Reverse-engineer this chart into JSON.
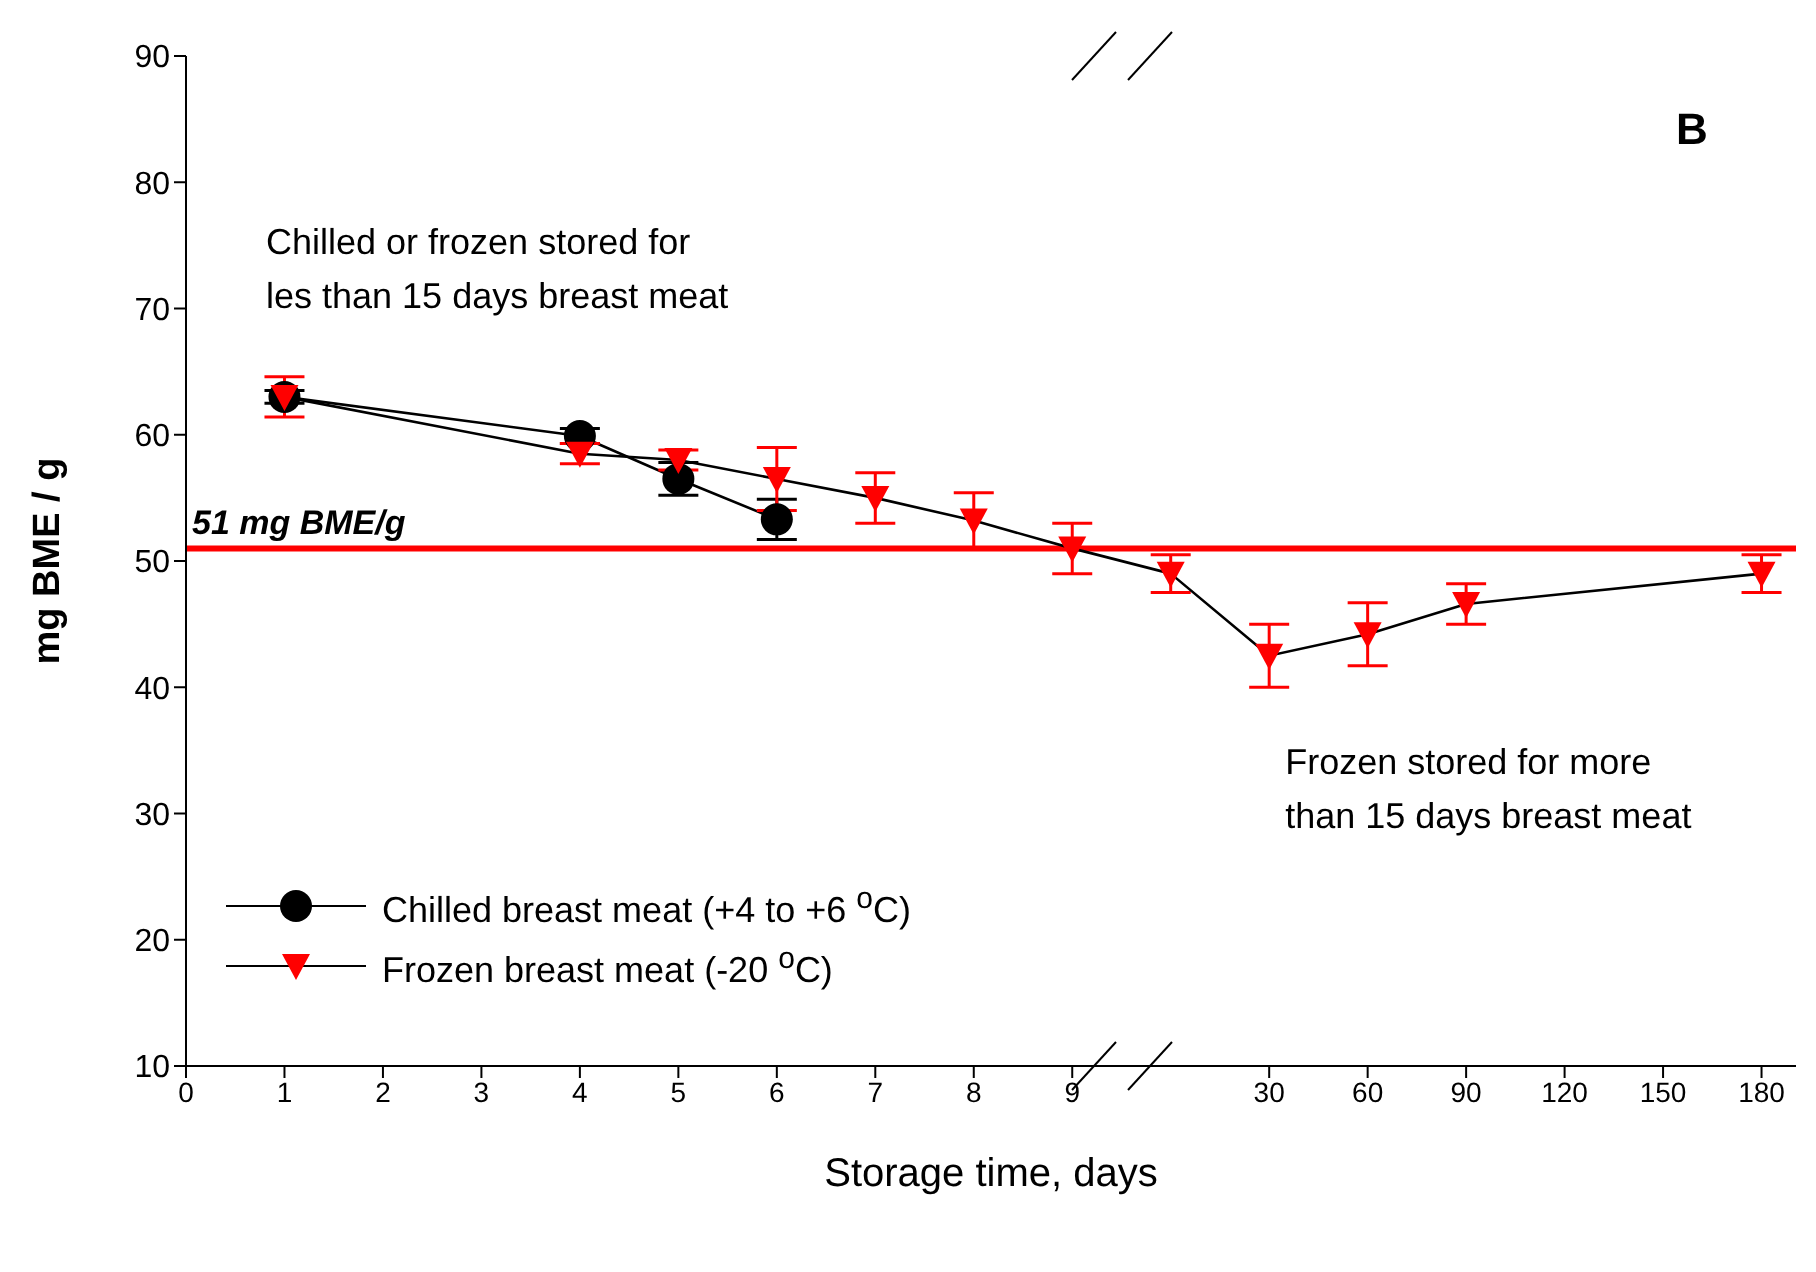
{
  "chart_data": {
    "type": "line",
    "xlabel": "Storage time, days",
    "ylabel": "mg BME / g",
    "categories": [
      "0",
      "1",
      "2",
      "3",
      "4",
      "5",
      "6",
      "7",
      "8",
      "9",
      null,
      "30",
      "60",
      "90",
      "120",
      "150",
      "180"
    ],
    "series": [
      {
        "name": "Chilled breast meat (+4 to +6 $^{o}$C)",
        "color": "#000000",
        "marker": "circle",
        "values": [
          null,
          63.0,
          null,
          null,
          59.9,
          56.5,
          53.3,
          null,
          null,
          null,
          null,
          null,
          null,
          null,
          null,
          null,
          null
        ],
        "errors": [
          null,
          0.5,
          null,
          null,
          0.6,
          1.3,
          1.6,
          null,
          null,
          null,
          null,
          null,
          null,
          null,
          null,
          null,
          null
        ]
      },
      {
        "name": "Frozen breast meat (-20 $^{o}$C)",
        "color": "#ff0000",
        "marker": "triangle",
        "values": [
          null,
          63.0,
          null,
          null,
          58.5,
          58.0,
          56.5,
          55.0,
          53.2,
          51.0,
          49.0,
          42.5,
          44.2,
          46.6,
          null,
          null,
          49.0
        ],
        "errors": [
          null,
          1.6,
          null,
          null,
          0.8,
          0.8,
          2.5,
          2.0,
          2.2,
          2.0,
          1.5,
          2.5,
          2.5,
          1.6,
          null,
          null,
          1.5
        ]
      }
    ],
    "ylim": [
      10,
      90
    ],
    "yticks": [
      10,
      20,
      30,
      40,
      50,
      60,
      70,
      80,
      90
    ],
    "ref_lines": [
      {
        "axis": "y",
        "value": 51,
        "label": "51 mg BME/g",
        "color": "#ff0000"
      }
    ],
    "annotations": [
      "B",
      "Chilled or frozen stored for\nles than 15 days breast meat",
      "Frozen stored for more\nthan 15 days breast meat"
    ],
    "legend": "bottom left"
  }
}
